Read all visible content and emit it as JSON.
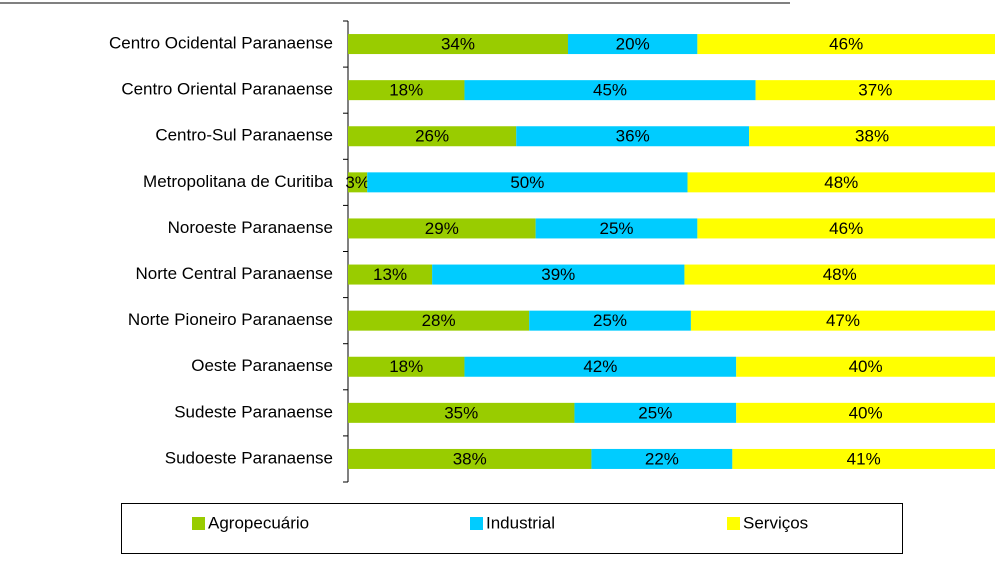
{
  "chart_data": {
    "type": "stacked-bar-horizontal-100",
    "categories": [
      "Centro Ocidental Paranaense",
      "Centro Oriental Paranaense",
      "Centro-Sul Paranaense",
      "Metropolitana de Curitiba",
      "Noroeste Paranaense",
      "Norte Central Paranaense",
      "Norte Pioneiro Paranaense",
      "Oeste Paranaense",
      "Sudeste Paranaense",
      "Sudoeste Paranaense"
    ],
    "series": [
      {
        "name": "Agropecuário",
        "color": "#99cc00",
        "values": [
          34,
          18,
          26,
          3,
          29,
          13,
          28,
          18,
          35,
          38
        ],
        "value_labels": [
          "34%",
          "18%",
          "26%",
          "3%",
          "29%",
          "13%",
          "28%",
          "18%",
          "35%",
          "38%"
        ]
      },
      {
        "name": "Industrial",
        "color": "#00ccff",
        "values": [
          20,
          45,
          36,
          50,
          25,
          39,
          25,
          42,
          25,
          22
        ],
        "value_labels": [
          "20%",
          "45%",
          "36%",
          "50%",
          "25%",
          "39%",
          "25%",
          "42%",
          "25%",
          "22%"
        ]
      },
      {
        "name": "Serviços",
        "color": "#ffff00",
        "values": [
          46,
          37,
          38,
          48,
          46,
          48,
          47,
          40,
          40,
          41
        ],
        "value_labels": [
          "46%",
          "37%",
          "38%",
          "48%",
          "46%",
          "48%",
          "47%",
          "40%",
          "40%",
          "41%"
        ]
      }
    ],
    "legend": "bottom"
  }
}
